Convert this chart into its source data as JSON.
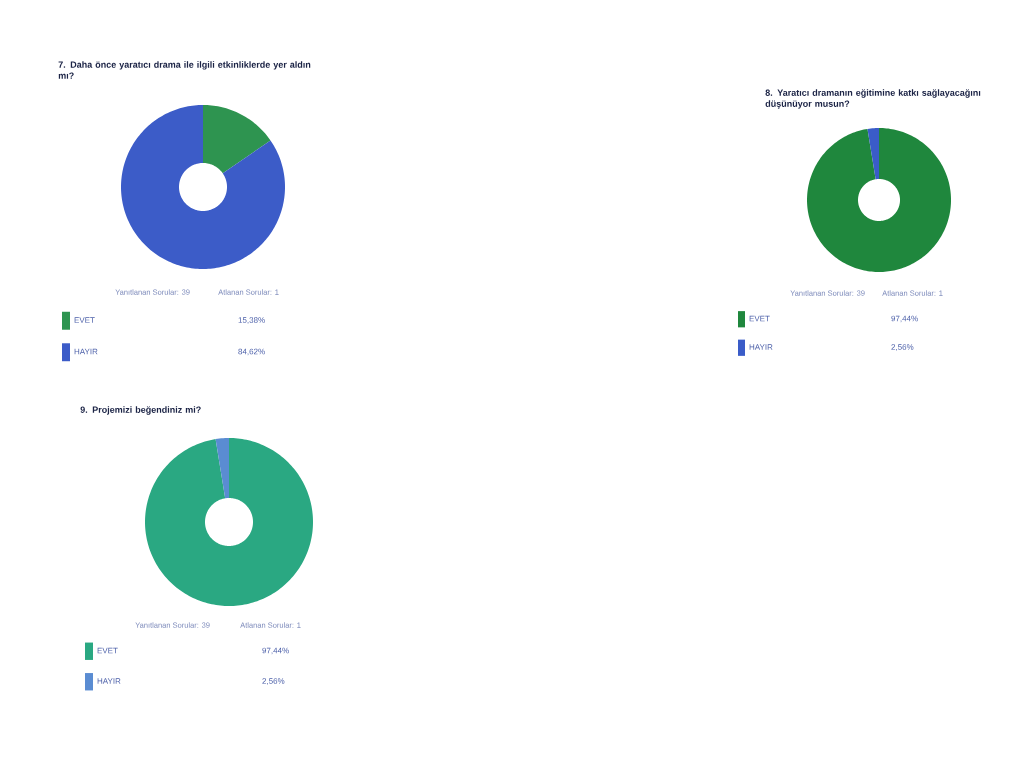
{
  "chart_data": [
    {
      "type": "donut",
      "title": "7. Daha önce yaratıcı drama ile ilgili etkinliklerde yer aldın mı?",
      "annotations": [
        "Yanıtlanan Sorular: 39",
        "Atlanan Sorular: 1"
      ],
      "categories": [
        "EVET",
        "HAYIR"
      ],
      "values": [
        15.38,
        84.62
      ],
      "colors": [
        "#2e9450",
        "#3c5cc8"
      ],
      "value_labels": [
        "15,38%",
        "84,62%"
      ],
      "legend": "bottom"
    },
    {
      "type": "donut",
      "title": "8. Yaratıcı dramanın eğitimine katkı sağlayacağını düşünüyor musun?",
      "annotations": [
        "Yanıtlanan Sorular: 39",
        "Atlanan Sorular: 1"
      ],
      "categories": [
        "EVET",
        "HAYIR"
      ],
      "values": [
        97.44,
        2.56
      ],
      "colors": [
        "#1f873d",
        "#3a5cc8"
      ],
      "value_labels": [
        "97,44%",
        "2,56%"
      ],
      "legend": "bottom"
    },
    {
      "type": "donut",
      "title": "9. Projemizi beğendiniz mi?",
      "annotations": [
        "Yanıtlanan Sorular: 39",
        "Atlanan Sorular: 1"
      ],
      "categories": [
        "EVET",
        "HAYIR"
      ],
      "values": [
        97.44,
        2.56
      ],
      "colors": [
        "#2aa882",
        "#5a8cd2"
      ],
      "value_labels": [
        "97,44%",
        "2,56%"
      ],
      "legend": "bottom"
    }
  ]
}
